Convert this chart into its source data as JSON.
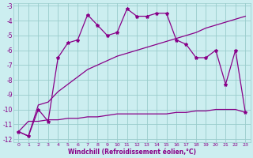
{
  "xlabel": "Windchill (Refroidissement éolien,°C)",
  "xlim": [
    -0.5,
    23.5
  ],
  "ylim": [
    -12.2,
    -2.8
  ],
  "xtick_vals": [
    0,
    1,
    2,
    3,
    4,
    5,
    6,
    7,
    8,
    9,
    10,
    11,
    12,
    13,
    14,
    15,
    16,
    17,
    18,
    19,
    20,
    21,
    22,
    23
  ],
  "ytick_vals": [
    -12,
    -11,
    -10,
    -9,
    -8,
    -7,
    -6,
    -5,
    -4,
    -3
  ],
  "bg_color": "#cceef0",
  "grid_color": "#99cccc",
  "line_color": "#880088",
  "line1_x": [
    0,
    1,
    2,
    3,
    4,
    5,
    6,
    7,
    8,
    9,
    10,
    11,
    12,
    13,
    14,
    15,
    16,
    17,
    18,
    19,
    20,
    21,
    22,
    23
  ],
  "line1_y": [
    -11.5,
    -11.8,
    -10.0,
    -10.8,
    -6.5,
    -5.5,
    -5.3,
    -3.6,
    -4.3,
    -5.0,
    -4.8,
    -3.2,
    -3.7,
    -3.7,
    -3.5,
    -3.5,
    -5.3,
    -5.6,
    -6.5,
    -6.5,
    -6.0,
    -8.3,
    -6.0,
    -10.2
  ],
  "line2_x": [
    0,
    1,
    2,
    3,
    4,
    5,
    6,
    7,
    8,
    9,
    10,
    11,
    12,
    13,
    14,
    15,
    16,
    17,
    18,
    19,
    20,
    21,
    22,
    23
  ],
  "line2_y": [
    -11.5,
    -11.8,
    -9.7,
    -9.5,
    -8.8,
    -8.3,
    -7.8,
    -7.3,
    -7.0,
    -6.7,
    -6.4,
    -6.2,
    -6.0,
    -5.8,
    -5.6,
    -5.4,
    -5.2,
    -5.0,
    -4.8,
    -4.5,
    -4.3,
    -4.1,
    -3.9,
    -3.7
  ],
  "line3_x": [
    0,
    1,
    2,
    3,
    4,
    5,
    6,
    7,
    8,
    9,
    10,
    11,
    12,
    13,
    14,
    15,
    16,
    17,
    18,
    19,
    20,
    21,
    22,
    23
  ],
  "line3_y": [
    -11.5,
    -10.8,
    -10.8,
    -10.7,
    -10.7,
    -10.6,
    -10.6,
    -10.5,
    -10.5,
    -10.4,
    -10.3,
    -10.3,
    -10.3,
    -10.3,
    -10.3,
    -10.3,
    -10.2,
    -10.2,
    -10.1,
    -10.1,
    -10.0,
    -10.0,
    -10.0,
    -10.2
  ]
}
